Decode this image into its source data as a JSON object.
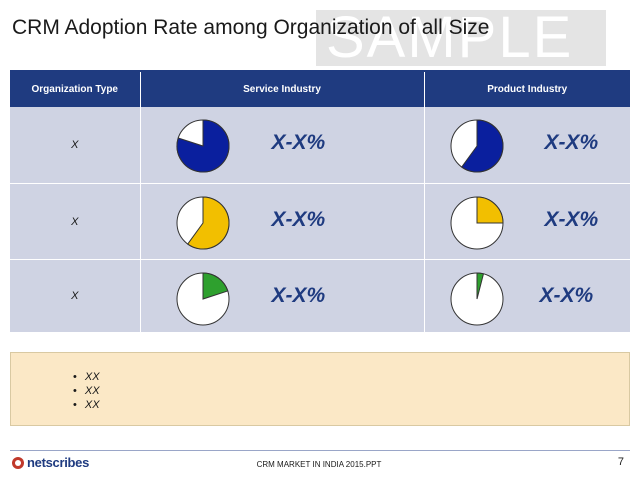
{
  "slide": {
    "title": "CRM Adoption Rate among Organization of all Size",
    "watermark": "SAMPLE"
  },
  "table": {
    "headers": [
      "Organization Type",
      "Service Industry",
      "Product Industry"
    ],
    "rows": [
      {
        "type": "X",
        "service": {
          "fraction": 0.8,
          "color": "#0a1f9e",
          "label": "X-X%"
        },
        "product": {
          "fraction": 0.6,
          "color": "#0a1f9e",
          "label": "X-X%"
        }
      },
      {
        "type": "X",
        "service": {
          "fraction": 0.6,
          "color": "#f2bf00",
          "label": "X-X%"
        },
        "product": {
          "fraction": 0.25,
          "color": "#f2bf00",
          "label": "X-X%"
        }
      },
      {
        "type": "X",
        "service": {
          "fraction": 0.2,
          "color": "#2ea02e",
          "label": "X-X%"
        },
        "product": {
          "fraction": 0.04,
          "color": "#2ea02e",
          "label": "X-X%"
        }
      }
    ]
  },
  "notes": [
    "XX",
    "XX",
    "XX"
  ],
  "footer": {
    "logo": "netscribes",
    "text": "CRM MARKET IN INDIA 2015.PPT",
    "page": "7"
  },
  "colors": {
    "header": "#1f3b80",
    "cell": "#cfd3e3",
    "note": "#fbe8c6"
  }
}
